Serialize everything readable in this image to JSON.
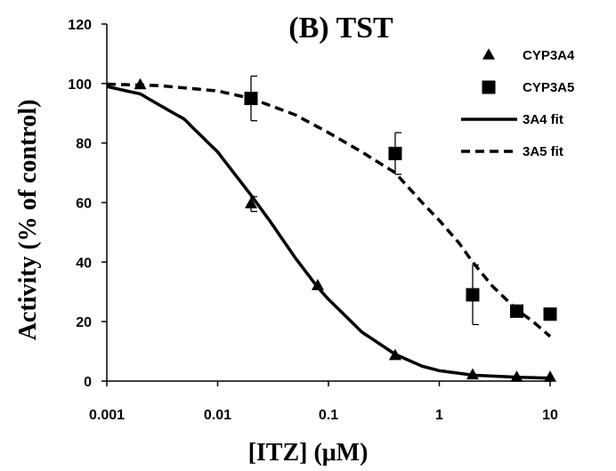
{
  "chart_data": {
    "type": "scatter",
    "title": "(B) TST",
    "xlabel": "[ITZ] (μM)",
    "ylabel": "Activity (% of control)",
    "x_scale": "log",
    "xlim": [
      0.001,
      10
    ],
    "ylim": [
      0,
      120
    ],
    "x_ticks": [
      0.001,
      0.01,
      0.1,
      1,
      10
    ],
    "x_tick_labels": [
      "0.001",
      "0.01",
      "0.1",
      "1",
      "10"
    ],
    "y_ticks": [
      0,
      20,
      40,
      60,
      80,
      100,
      120
    ],
    "y_tick_labels": [
      "0",
      "20",
      "40",
      "60",
      "80",
      "100",
      "120"
    ],
    "grid": false,
    "legend_position": "top-right",
    "series": [
      {
        "name": "CYP3A4",
        "kind": "points",
        "marker": "triangle",
        "color": "#000000",
        "x": [
          0.002,
          0.02,
          0.08,
          0.4,
          2,
          5,
          10
        ],
        "y": [
          99.5,
          59.5,
          32,
          8.5,
          2,
          1.2,
          1.2
        ],
        "error": [
          0,
          2.5,
          0,
          0,
          0,
          0,
          0
        ]
      },
      {
        "name": "CYP3A5",
        "kind": "points",
        "marker": "square",
        "color": "#000000",
        "x": [
          0.02,
          0.4,
          2,
          5,
          10
        ],
        "y": [
          95,
          76.5,
          29,
          23.5,
          22.5
        ],
        "error": [
          7.5,
          7,
          10,
          0,
          0
        ]
      },
      {
        "name": "3A4 fit",
        "kind": "line",
        "style": "solid",
        "color": "#000000",
        "x": [
          0.001,
          0.002,
          0.005,
          0.01,
          0.02,
          0.03,
          0.05,
          0.08,
          0.1,
          0.2,
          0.4,
          0.7,
          1,
          2,
          5,
          10
        ],
        "y": [
          99,
          96.5,
          88,
          77,
          62.5,
          53.5,
          41.5,
          31.5,
          27.5,
          16.5,
          9,
          5,
          3.5,
          2,
          1.3,
          1
        ]
      },
      {
        "name": "3A5 fit",
        "kind": "line",
        "style": "dashed",
        "color": "#000000",
        "x": [
          0.001,
          0.003,
          0.01,
          0.02,
          0.05,
          0.1,
          0.2,
          0.4,
          0.7,
          1,
          1.5,
          2,
          3,
          5,
          7,
          10
        ],
        "y": [
          99.8,
          99.3,
          97.5,
          95,
          89.5,
          83.5,
          77,
          70,
          60,
          54,
          46.5,
          40,
          32,
          24,
          20,
          15
        ]
      }
    ]
  }
}
